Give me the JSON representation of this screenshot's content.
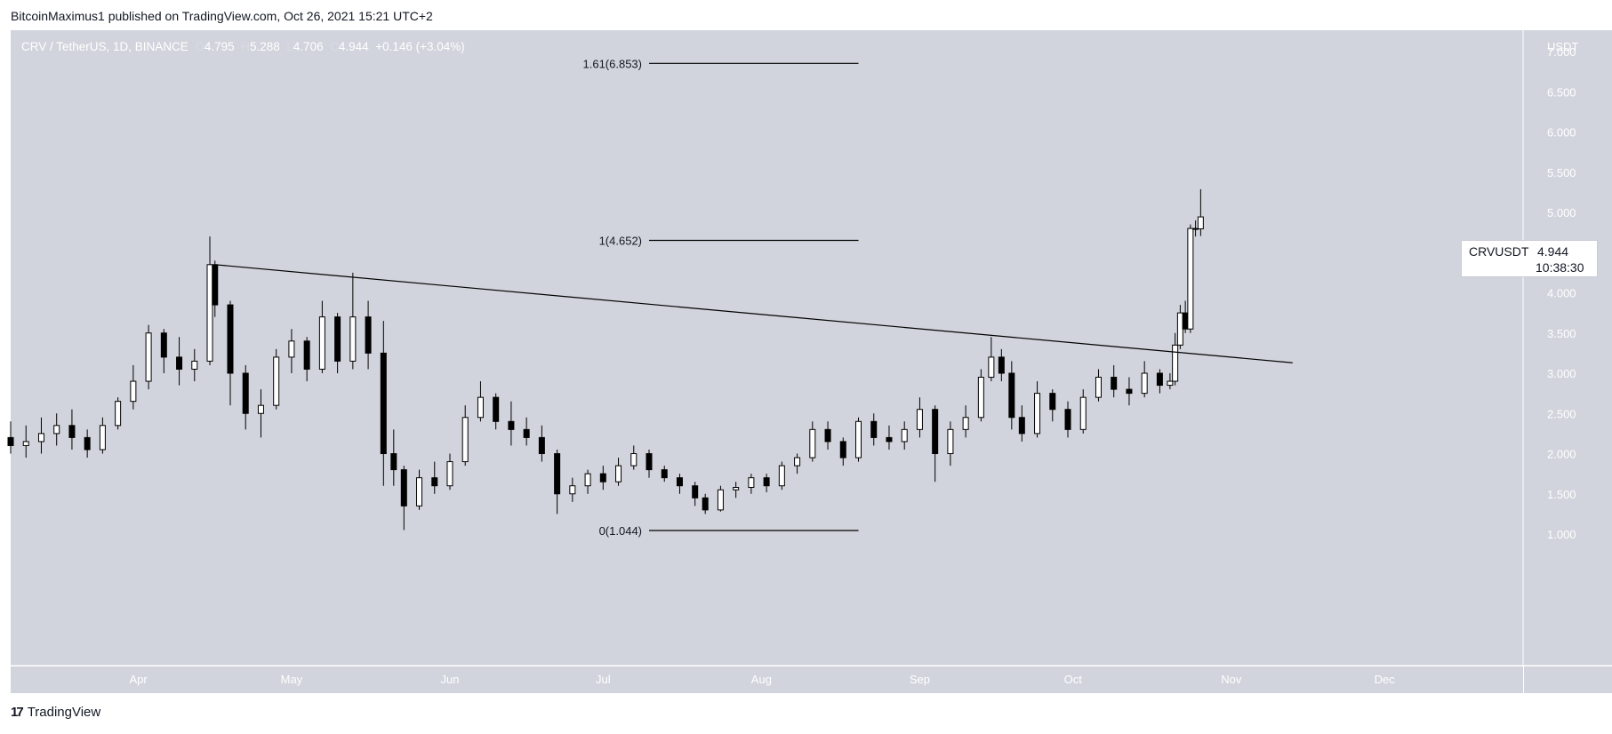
{
  "header": {
    "published_by": "BitcoinMaximus1 published on TradingView.com, Oct 26, 2021 15:21 UTC+2"
  },
  "legend": {
    "symbol": "CRV / TetherUS, 1D, BINANCE",
    "o_key": "O",
    "o_val": "4.795",
    "h_key": "H",
    "h_val": "5.288",
    "l_key": "L",
    "l_val": "4.706",
    "c_key": "C",
    "c_val": "4.944",
    "change": "+0.146 (+3.04%)"
  },
  "price_tag": {
    "symbol": "CRVUSDT",
    "price": "4.944",
    "countdown": "10:38:30"
  },
  "footer": {
    "brand": "TradingView",
    "logo_glyph": "17"
  },
  "colors": {
    "background": "#d1d4dc",
    "candle_up": "#ffffff",
    "candle_down": "#000000",
    "line": "#000000",
    "axis_text": "#ffffff"
  },
  "chart_data": {
    "type": "candlestick",
    "currency": "USDT",
    "ylim": [
      0.5,
      7.0
    ],
    "y_ticks": [
      {
        "value": 1.0,
        "label": "1.000"
      },
      {
        "value": 1.5,
        "label": "1.500"
      },
      {
        "value": 2.0,
        "label": "2.000"
      },
      {
        "value": 2.5,
        "label": "2.500"
      },
      {
        "value": 3.0,
        "label": "3.000"
      },
      {
        "value": 3.5,
        "label": "3.500"
      },
      {
        "value": 4.0,
        "label": "4.000"
      },
      {
        "value": 4.5,
        "label": "4.500"
      },
      {
        "value": 5.0,
        "label": "5.000"
      },
      {
        "value": 5.5,
        "label": "5.500"
      },
      {
        "value": 6.0,
        "label": "6.000"
      },
      {
        "value": 6.5,
        "label": "6.500"
      },
      {
        "value": 7.0,
        "label": "7.000"
      }
    ],
    "x_ticks": [
      {
        "date": "2021-04-01",
        "label": "Apr"
      },
      {
        "date": "2021-05-01",
        "label": "May"
      },
      {
        "date": "2021-06-01",
        "label": "Jun"
      },
      {
        "date": "2021-07-01",
        "label": "Jul"
      },
      {
        "date": "2021-08-01",
        "label": "Aug"
      },
      {
        "date": "2021-09-01",
        "label": "Sep"
      },
      {
        "date": "2021-10-01",
        "label": "Oct"
      },
      {
        "date": "2021-11-01",
        "label": "Nov"
      },
      {
        "date": "2021-12-01",
        "label": "Dec"
      }
    ],
    "x_range": [
      "2021-03-07",
      "2021-12-25"
    ],
    "fib_levels": [
      {
        "label": "1.61(6.853)",
        "value": 6.853,
        "from": "2021-07-10",
        "to": "2021-08-20"
      },
      {
        "label": "1(4.652)",
        "value": 4.652,
        "from": "2021-07-10",
        "to": "2021-08-20"
      },
      {
        "label": "0(1.044)",
        "value": 1.044,
        "from": "2021-07-10",
        "to": "2021-08-20"
      }
    ],
    "trendline": {
      "from": {
        "date": "2021-04-16",
        "value": 4.35
      },
      "to": {
        "date": "2021-11-13",
        "value": 3.13
      }
    },
    "candles": [
      [
        "2021-03-07",
        2.2,
        2.4,
        2.0,
        2.1
      ],
      [
        "2021-03-10",
        2.1,
        2.35,
        1.95,
        2.15
      ],
      [
        "2021-03-13",
        2.15,
        2.45,
        2.0,
        2.25
      ],
      [
        "2021-03-16",
        2.25,
        2.5,
        2.1,
        2.35
      ],
      [
        "2021-03-19",
        2.35,
        2.55,
        2.05,
        2.2
      ],
      [
        "2021-03-22",
        2.2,
        2.3,
        1.95,
        2.05
      ],
      [
        "2021-03-25",
        2.05,
        2.45,
        2.0,
        2.35
      ],
      [
        "2021-03-28",
        2.35,
        2.7,
        2.3,
        2.65
      ],
      [
        "2021-03-31",
        2.65,
        3.1,
        2.55,
        2.9
      ],
      [
        "2021-04-03",
        2.9,
        3.6,
        2.8,
        3.5
      ],
      [
        "2021-04-06",
        3.5,
        3.55,
        3.0,
        3.2
      ],
      [
        "2021-04-09",
        3.2,
        3.45,
        2.85,
        3.05
      ],
      [
        "2021-04-12",
        3.05,
        3.3,
        2.9,
        3.15
      ],
      [
        "2021-04-15",
        3.15,
        4.7,
        3.1,
        4.35
      ],
      [
        "2021-04-16",
        4.35,
        4.4,
        3.7,
        3.85
      ],
      [
        "2021-04-19",
        3.85,
        3.9,
        2.6,
        3.0
      ],
      [
        "2021-04-22",
        3.0,
        3.1,
        2.3,
        2.5
      ],
      [
        "2021-04-25",
        2.5,
        2.8,
        2.2,
        2.6
      ],
      [
        "2021-04-28",
        2.6,
        3.3,
        2.55,
        3.2
      ],
      [
        "2021-05-01",
        3.2,
        3.55,
        3.0,
        3.4
      ],
      [
        "2021-05-04",
        3.4,
        3.45,
        2.9,
        3.05
      ],
      [
        "2021-05-07",
        3.05,
        3.9,
        3.0,
        3.7
      ],
      [
        "2021-05-10",
        3.7,
        3.75,
        3.0,
        3.15
      ],
      [
        "2021-05-13",
        3.15,
        4.25,
        3.05,
        3.7
      ],
      [
        "2021-05-16",
        3.7,
        3.9,
        3.05,
        3.25
      ],
      [
        "2021-05-19",
        3.25,
        3.65,
        1.6,
        2.0
      ],
      [
        "2021-05-21",
        2.0,
        2.3,
        1.6,
        1.8
      ],
      [
        "2021-05-23",
        1.8,
        1.85,
        1.05,
        1.35
      ],
      [
        "2021-05-26",
        1.35,
        1.8,
        1.3,
        1.7
      ],
      [
        "2021-05-29",
        1.7,
        1.9,
        1.5,
        1.6
      ],
      [
        "2021-06-01",
        1.6,
        2.0,
        1.55,
        1.9
      ],
      [
        "2021-06-04",
        1.9,
        2.6,
        1.85,
        2.45
      ],
      [
        "2021-06-07",
        2.45,
        2.9,
        2.4,
        2.7
      ],
      [
        "2021-06-10",
        2.7,
        2.75,
        2.3,
        2.4
      ],
      [
        "2021-06-13",
        2.4,
        2.65,
        2.1,
        2.3
      ],
      [
        "2021-06-16",
        2.3,
        2.45,
        2.1,
        2.2
      ],
      [
        "2021-06-19",
        2.2,
        2.35,
        1.9,
        2.0
      ],
      [
        "2021-06-22",
        2.0,
        2.05,
        1.25,
        1.5
      ],
      [
        "2021-06-25",
        1.5,
        1.7,
        1.4,
        1.6
      ],
      [
        "2021-06-28",
        1.6,
        1.8,
        1.5,
        1.75
      ],
      [
        "2021-07-01",
        1.75,
        1.85,
        1.55,
        1.65
      ],
      [
        "2021-07-04",
        1.65,
        1.95,
        1.6,
        1.85
      ],
      [
        "2021-07-07",
        1.85,
        2.1,
        1.8,
        2.0
      ],
      [
        "2021-07-10",
        2.0,
        2.05,
        1.7,
        1.8
      ],
      [
        "2021-07-13",
        1.8,
        1.85,
        1.65,
        1.7
      ],
      [
        "2021-07-16",
        1.7,
        1.75,
        1.5,
        1.6
      ],
      [
        "2021-07-19",
        1.6,
        1.65,
        1.35,
        1.45
      ],
      [
        "2021-07-21",
        1.45,
        1.5,
        1.25,
        1.3
      ],
      [
        "2021-07-24",
        1.3,
        1.6,
        1.28,
        1.55
      ],
      [
        "2021-07-27",
        1.55,
        1.65,
        1.45,
        1.58
      ],
      [
        "2021-07-30",
        1.58,
        1.75,
        1.5,
        1.7
      ],
      [
        "2021-08-02",
        1.7,
        1.75,
        1.52,
        1.6
      ],
      [
        "2021-08-05",
        1.6,
        1.9,
        1.55,
        1.85
      ],
      [
        "2021-08-08",
        1.85,
        2.0,
        1.75,
        1.95
      ],
      [
        "2021-08-11",
        1.95,
        2.4,
        1.9,
        2.3
      ],
      [
        "2021-08-14",
        2.3,
        2.4,
        2.05,
        2.15
      ],
      [
        "2021-08-17",
        2.15,
        2.2,
        1.85,
        1.95
      ],
      [
        "2021-08-20",
        1.95,
        2.45,
        1.9,
        2.4
      ],
      [
        "2021-08-23",
        2.4,
        2.5,
        2.1,
        2.2
      ],
      [
        "2021-08-26",
        2.2,
        2.35,
        2.05,
        2.15
      ],
      [
        "2021-08-29",
        2.15,
        2.4,
        2.05,
        2.3
      ],
      [
        "2021-09-01",
        2.3,
        2.7,
        2.2,
        2.55
      ],
      [
        "2021-09-04",
        2.55,
        2.6,
        1.65,
        2.0
      ],
      [
        "2021-09-07",
        2.0,
        2.4,
        1.85,
        2.3
      ],
      [
        "2021-09-10",
        2.3,
        2.6,
        2.2,
        2.45
      ],
      [
        "2021-09-13",
        2.45,
        3.05,
        2.4,
        2.95
      ],
      [
        "2021-09-15",
        2.95,
        3.45,
        2.9,
        3.2
      ],
      [
        "2021-09-17",
        3.2,
        3.3,
        2.9,
        3.0
      ],
      [
        "2021-09-19",
        3.0,
        3.15,
        2.3,
        2.45
      ],
      [
        "2021-09-21",
        2.45,
        2.6,
        2.15,
        2.25
      ],
      [
        "2021-09-24",
        2.25,
        2.9,
        2.2,
        2.75
      ],
      [
        "2021-09-27",
        2.75,
        2.8,
        2.4,
        2.55
      ],
      [
        "2021-09-30",
        2.55,
        2.65,
        2.2,
        2.3
      ],
      [
        "2021-10-03",
        2.3,
        2.8,
        2.25,
        2.7
      ],
      [
        "2021-10-06",
        2.7,
        3.05,
        2.65,
        2.95
      ],
      [
        "2021-10-09",
        2.95,
        3.1,
        2.7,
        2.8
      ],
      [
        "2021-10-12",
        2.8,
        2.95,
        2.6,
        2.75
      ],
      [
        "2021-10-15",
        2.75,
        3.15,
        2.7,
        3.0
      ],
      [
        "2021-10-18",
        3.0,
        3.05,
        2.75,
        2.85
      ],
      [
        "2021-10-20",
        2.85,
        3.0,
        2.8,
        2.9
      ],
      [
        "2021-10-21",
        2.9,
        3.5,
        2.85,
        3.35
      ],
      [
        "2021-10-22",
        3.35,
        3.85,
        3.3,
        3.75
      ],
      [
        "2021-10-23",
        3.75,
        3.9,
        3.5,
        3.55
      ],
      [
        "2021-10-24",
        3.55,
        4.85,
        3.5,
        4.8
      ],
      [
        "2021-10-25",
        4.8,
        4.9,
        4.7,
        4.8
      ],
      [
        "2021-10-26",
        4.795,
        5.288,
        4.706,
        4.944
      ]
    ]
  }
}
